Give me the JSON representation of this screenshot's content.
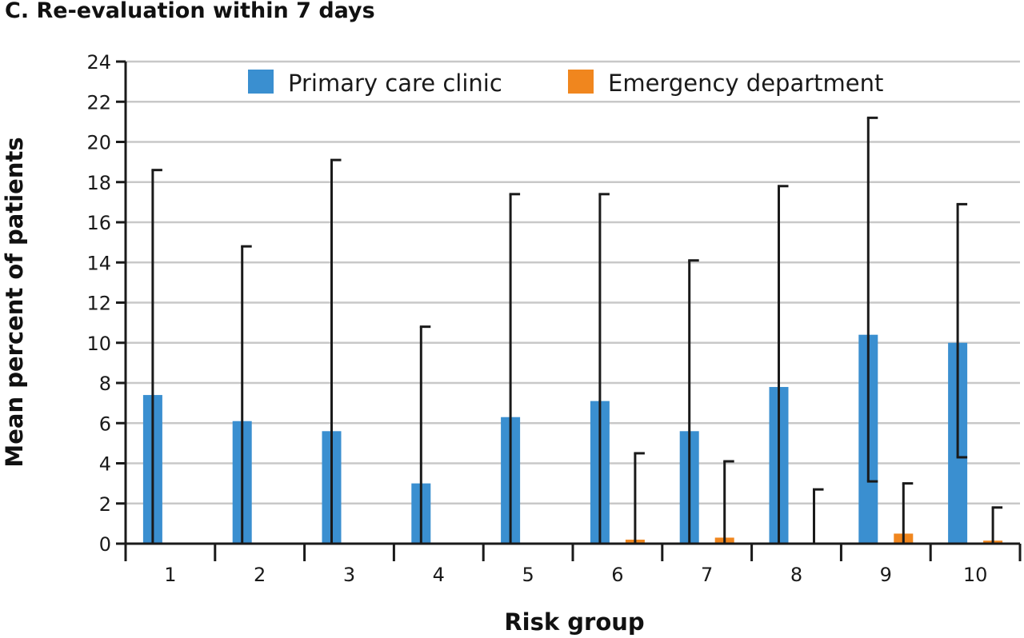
{
  "chart_data": {
    "type": "bar",
    "title": "C. Re-evaluation within 7 days",
    "xlabel": "Risk group",
    "ylabel": "Mean percent of patients",
    "categories": [
      "1",
      "2",
      "3",
      "4",
      "5",
      "6",
      "7",
      "8",
      "9",
      "10"
    ],
    "yticks": [
      "0",
      "2",
      "4",
      "6",
      "8",
      "10",
      "12",
      "14",
      "16",
      "18",
      "20",
      "22",
      "24"
    ],
    "ylim": [
      0,
      24
    ],
    "grid": true,
    "legend_position": "top",
    "series": [
      {
        "name": "Primary care clinic",
        "color": "#3a8fd0",
        "values": [
          7.4,
          6.1,
          5.6,
          3.0,
          6.3,
          7.1,
          5.6,
          7.8,
          10.4,
          10.0
        ],
        "error_upper": [
          18.6,
          14.8,
          19.1,
          10.8,
          17.4,
          17.4,
          14.1,
          17.8,
          21.2,
          16.9
        ],
        "error_lower": [
          0,
          0,
          0,
          0,
          0,
          0,
          0,
          0,
          3.1,
          4.3
        ]
      },
      {
        "name": "Emergency department",
        "color": "#f0861e",
        "values": [
          0,
          0,
          0,
          0,
          0.05,
          0.2,
          0.3,
          0,
          0.5,
          0.15
        ],
        "error_upper": [
          null,
          null,
          null,
          null,
          null,
          4.5,
          4.1,
          2.7,
          3.0,
          1.8
        ],
        "error_lower": [
          0,
          0,
          0,
          0,
          0,
          0,
          0,
          0,
          0,
          0
        ]
      }
    ]
  }
}
